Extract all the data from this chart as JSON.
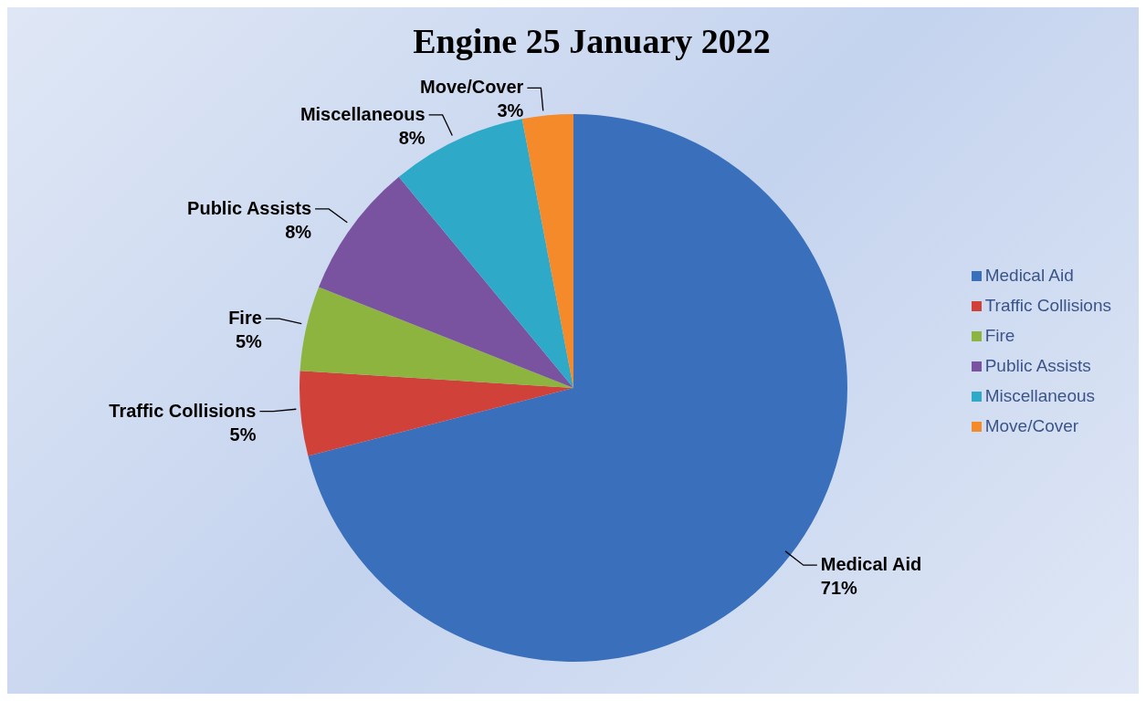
{
  "chart_data": {
    "type": "pie",
    "title": "Engine 25 January 2022",
    "categories": [
      "Medical Aid",
      "Traffic Collisions",
      "Fire",
      "Public Assists",
      "Miscellaneous",
      "Move/Cover"
    ],
    "values": [
      71,
      5,
      5,
      8,
      8,
      3
    ],
    "colors": [
      "#3a70bb",
      "#d0413a",
      "#8cb43f",
      "#7a53a0",
      "#2eaac8",
      "#f58a2a"
    ],
    "value_labels": [
      "71%",
      "5%",
      "5%",
      "8%",
      "8%",
      "3%"
    ],
    "legend": "right"
  }
}
